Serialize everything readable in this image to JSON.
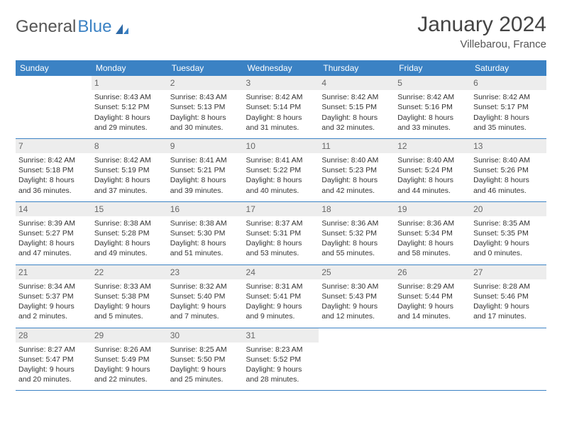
{
  "logo": {
    "text1": "General",
    "text2": "Blue"
  },
  "title": "January 2024",
  "location": "Villebarou, France",
  "colors": {
    "header_bg": "#3b82c4",
    "header_text": "#ffffff",
    "daynum_bg": "#ededed",
    "daynum_text": "#666666",
    "body_text": "#333333",
    "rule": "#3b82c4",
    "page_bg": "#ffffff"
  },
  "typography": {
    "title_fontsize": 30,
    "location_fontsize": 15,
    "dayheader_fontsize": 12,
    "cell_fontsize": 10.5
  },
  "calendar": {
    "type": "table",
    "columns": [
      "Sunday",
      "Monday",
      "Tuesday",
      "Wednesday",
      "Thursday",
      "Friday",
      "Saturday"
    ],
    "weeks": [
      [
        {
          "day": "",
          "lines": []
        },
        {
          "day": "1",
          "lines": [
            "Sunrise: 8:43 AM",
            "Sunset: 5:12 PM",
            "Daylight: 8 hours",
            "and 29 minutes."
          ]
        },
        {
          "day": "2",
          "lines": [
            "Sunrise: 8:43 AM",
            "Sunset: 5:13 PM",
            "Daylight: 8 hours",
            "and 30 minutes."
          ]
        },
        {
          "day": "3",
          "lines": [
            "Sunrise: 8:42 AM",
            "Sunset: 5:14 PM",
            "Daylight: 8 hours",
            "and 31 minutes."
          ]
        },
        {
          "day": "4",
          "lines": [
            "Sunrise: 8:42 AM",
            "Sunset: 5:15 PM",
            "Daylight: 8 hours",
            "and 32 minutes."
          ]
        },
        {
          "day": "5",
          "lines": [
            "Sunrise: 8:42 AM",
            "Sunset: 5:16 PM",
            "Daylight: 8 hours",
            "and 33 minutes."
          ]
        },
        {
          "day": "6",
          "lines": [
            "Sunrise: 8:42 AM",
            "Sunset: 5:17 PM",
            "Daylight: 8 hours",
            "and 35 minutes."
          ]
        }
      ],
      [
        {
          "day": "7",
          "lines": [
            "Sunrise: 8:42 AM",
            "Sunset: 5:18 PM",
            "Daylight: 8 hours",
            "and 36 minutes."
          ]
        },
        {
          "day": "8",
          "lines": [
            "Sunrise: 8:42 AM",
            "Sunset: 5:19 PM",
            "Daylight: 8 hours",
            "and 37 minutes."
          ]
        },
        {
          "day": "9",
          "lines": [
            "Sunrise: 8:41 AM",
            "Sunset: 5:21 PM",
            "Daylight: 8 hours",
            "and 39 minutes."
          ]
        },
        {
          "day": "10",
          "lines": [
            "Sunrise: 8:41 AM",
            "Sunset: 5:22 PM",
            "Daylight: 8 hours",
            "and 40 minutes."
          ]
        },
        {
          "day": "11",
          "lines": [
            "Sunrise: 8:40 AM",
            "Sunset: 5:23 PM",
            "Daylight: 8 hours",
            "and 42 minutes."
          ]
        },
        {
          "day": "12",
          "lines": [
            "Sunrise: 8:40 AM",
            "Sunset: 5:24 PM",
            "Daylight: 8 hours",
            "and 44 minutes."
          ]
        },
        {
          "day": "13",
          "lines": [
            "Sunrise: 8:40 AM",
            "Sunset: 5:26 PM",
            "Daylight: 8 hours",
            "and 46 minutes."
          ]
        }
      ],
      [
        {
          "day": "14",
          "lines": [
            "Sunrise: 8:39 AM",
            "Sunset: 5:27 PM",
            "Daylight: 8 hours",
            "and 47 minutes."
          ]
        },
        {
          "day": "15",
          "lines": [
            "Sunrise: 8:38 AM",
            "Sunset: 5:28 PM",
            "Daylight: 8 hours",
            "and 49 minutes."
          ]
        },
        {
          "day": "16",
          "lines": [
            "Sunrise: 8:38 AM",
            "Sunset: 5:30 PM",
            "Daylight: 8 hours",
            "and 51 minutes."
          ]
        },
        {
          "day": "17",
          "lines": [
            "Sunrise: 8:37 AM",
            "Sunset: 5:31 PM",
            "Daylight: 8 hours",
            "and 53 minutes."
          ]
        },
        {
          "day": "18",
          "lines": [
            "Sunrise: 8:36 AM",
            "Sunset: 5:32 PM",
            "Daylight: 8 hours",
            "and 55 minutes."
          ]
        },
        {
          "day": "19",
          "lines": [
            "Sunrise: 8:36 AM",
            "Sunset: 5:34 PM",
            "Daylight: 8 hours",
            "and 58 minutes."
          ]
        },
        {
          "day": "20",
          "lines": [
            "Sunrise: 8:35 AM",
            "Sunset: 5:35 PM",
            "Daylight: 9 hours",
            "and 0 minutes."
          ]
        }
      ],
      [
        {
          "day": "21",
          "lines": [
            "Sunrise: 8:34 AM",
            "Sunset: 5:37 PM",
            "Daylight: 9 hours",
            "and 2 minutes."
          ]
        },
        {
          "day": "22",
          "lines": [
            "Sunrise: 8:33 AM",
            "Sunset: 5:38 PM",
            "Daylight: 9 hours",
            "and 5 minutes."
          ]
        },
        {
          "day": "23",
          "lines": [
            "Sunrise: 8:32 AM",
            "Sunset: 5:40 PM",
            "Daylight: 9 hours",
            "and 7 minutes."
          ]
        },
        {
          "day": "24",
          "lines": [
            "Sunrise: 8:31 AM",
            "Sunset: 5:41 PM",
            "Daylight: 9 hours",
            "and 9 minutes."
          ]
        },
        {
          "day": "25",
          "lines": [
            "Sunrise: 8:30 AM",
            "Sunset: 5:43 PM",
            "Daylight: 9 hours",
            "and 12 minutes."
          ]
        },
        {
          "day": "26",
          "lines": [
            "Sunrise: 8:29 AM",
            "Sunset: 5:44 PM",
            "Daylight: 9 hours",
            "and 14 minutes."
          ]
        },
        {
          "day": "27",
          "lines": [
            "Sunrise: 8:28 AM",
            "Sunset: 5:46 PM",
            "Daylight: 9 hours",
            "and 17 minutes."
          ]
        }
      ],
      [
        {
          "day": "28",
          "lines": [
            "Sunrise: 8:27 AM",
            "Sunset: 5:47 PM",
            "Daylight: 9 hours",
            "and 20 minutes."
          ]
        },
        {
          "day": "29",
          "lines": [
            "Sunrise: 8:26 AM",
            "Sunset: 5:49 PM",
            "Daylight: 9 hours",
            "and 22 minutes."
          ]
        },
        {
          "day": "30",
          "lines": [
            "Sunrise: 8:25 AM",
            "Sunset: 5:50 PM",
            "Daylight: 9 hours",
            "and 25 minutes."
          ]
        },
        {
          "day": "31",
          "lines": [
            "Sunrise: 8:23 AM",
            "Sunset: 5:52 PM",
            "Daylight: 9 hours",
            "and 28 minutes."
          ]
        },
        {
          "day": "",
          "lines": []
        },
        {
          "day": "",
          "lines": []
        },
        {
          "day": "",
          "lines": []
        }
      ]
    ]
  }
}
